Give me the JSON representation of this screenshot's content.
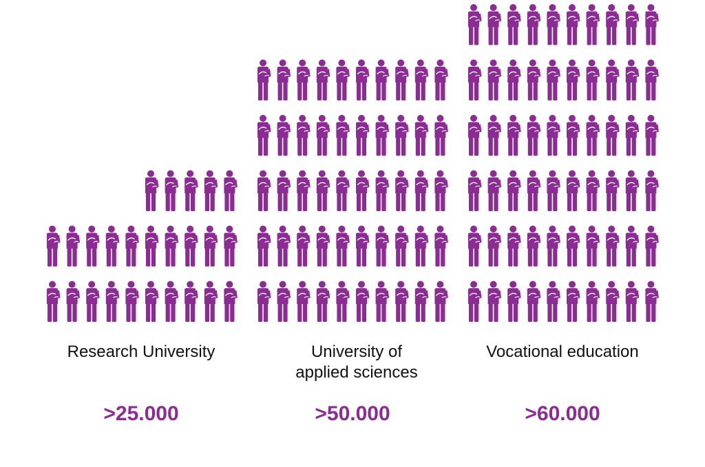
{
  "chart_data": {
    "type": "pictogram",
    "color": "#8b2b93",
    "icon": "person-holding-book-icon",
    "categories": [
      {
        "label": "Research University",
        "value_label": ">25.000",
        "icons": 25
      },
      {
        "label": "University of\napplied sciences",
        "value_label": ">50.000",
        "icons": 50
      },
      {
        "label": "Vocational education",
        "value_label": ">60.000",
        "icons": 60
      }
    ]
  }
}
